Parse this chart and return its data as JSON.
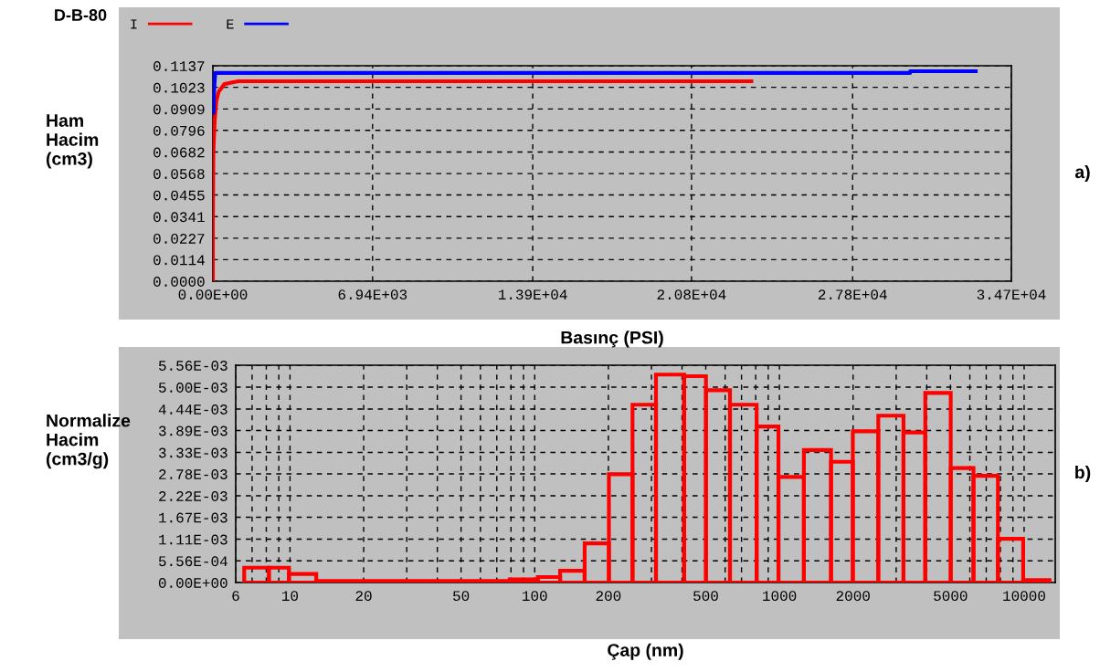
{
  "chart_data": [
    {
      "type": "line",
      "title": "D-B-80",
      "xlabel": "Basınç (PSI)",
      "ylabel": "Ham\nHacim\n(cm3)",
      "legend": "top left",
      "grid": true,
      "line_style": "solid",
      "marker": "none",
      "series": [
        {
          "name": "I",
          "color": "#ff0000",
          "x": [
            0,
            0,
            20,
            80,
            150,
            250,
            500,
            1100,
            23400
          ],
          "values": [
            0,
            0.03,
            0.068,
            0.085,
            0.095,
            0.1,
            0.104,
            0.1055,
            0.1055
          ]
        },
        {
          "name": "E",
          "color": "#0000ff",
          "x": [
            30,
            50,
            100,
            30300,
            30300,
            33150
          ],
          "values": [
            0.089,
            0.1,
            0.1099,
            0.1099,
            0.1108,
            0.1108
          ]
        }
      ],
      "xlim": [
        0,
        34700
      ],
      "xticks": [
        {
          "value": 0,
          "label": "0.00E+00"
        },
        {
          "value": 6940,
          "label": "6.94E+03"
        },
        {
          "value": 13900,
          "label": "1.39E+04"
        },
        {
          "value": 20800,
          "label": "2.08E+04"
        },
        {
          "value": 27800,
          "label": "2.78E+04"
        },
        {
          "value": 34700,
          "label": "3.47E+04"
        }
      ],
      "ylim": [
        0,
        0.1137
      ],
      "yticks": [
        {
          "value": 0,
          "label": "0.0000"
        },
        {
          "value": 0.0114,
          "label": "0.0114"
        },
        {
          "value": 0.0227,
          "label": "0.0227"
        },
        {
          "value": 0.0341,
          "label": "0.0341"
        },
        {
          "value": 0.0455,
          "label": "0.0455"
        },
        {
          "value": 0.0568,
          "label": "0.0568"
        },
        {
          "value": 0.0682,
          "label": "0.0682"
        },
        {
          "value": 0.0796,
          "label": "0.0796"
        },
        {
          "value": 0.0909,
          "label": "0.0909"
        },
        {
          "value": 0.1023,
          "label": "0.1023"
        },
        {
          "value": 0.1137,
          "label": "0.1137"
        }
      ],
      "annotations": [
        "a)"
      ]
    },
    {
      "type": "histogram",
      "xlabel": "Çap (nm)",
      "ylabel": "Normalize\nHacim\n(cm3/g)",
      "log": "x",
      "grid": true,
      "color": "#ff0000",
      "bins": [
        6.5,
        8.2,
        9.9,
        12.8,
        79,
        103,
        127,
        160,
        201,
        251,
        313,
        408,
        501,
        628,
        807,
        991,
        1259,
        1625,
        1995,
        2535,
        3214,
        3945,
        5012,
        6209,
        7816,
        9910,
        12700
      ],
      "values": [
        0.00038,
        0.00038,
        0.00022,
        4e-05,
        8e-05,
        0.00014,
        0.0003,
        0.001,
        0.00277,
        0.00455,
        0.00532,
        0.00528,
        0.00492,
        0.00455,
        0.00399,
        0.0027,
        0.00339,
        0.00309,
        0.00387,
        0.00427,
        0.00384,
        0.00485,
        0.00293,
        0.00273,
        0.00112,
        6e-05
      ],
      "xlim": [
        6,
        13400
      ],
      "xticks": [
        6,
        10,
        20,
        50,
        100,
        200,
        500,
        1000,
        2000,
        5000,
        10000
      ],
      "ylim": [
        0,
        0.00556
      ],
      "yticks": [
        {
          "value": 0,
          "label": "0.00E+00"
        },
        {
          "value": 0.000556,
          "label": "5.56E-04"
        },
        {
          "value": 0.00111,
          "label": "1.11E-03"
        },
        {
          "value": 0.00167,
          "label": "1.67E-03"
        },
        {
          "value": 0.00222,
          "label": "2.22E-03"
        },
        {
          "value": 0.00278,
          "label": "2.78E-03"
        },
        {
          "value": 0.00333,
          "label": "3.33E-03"
        },
        {
          "value": 0.00389,
          "label": "3.89E-03"
        },
        {
          "value": 0.00444,
          "label": "4.44E-03"
        },
        {
          "value": 0.005,
          "label": "5.00E-03"
        },
        {
          "value": 0.00556,
          "label": "5.56E-03"
        }
      ],
      "annotations": [
        "b)"
      ]
    }
  ]
}
